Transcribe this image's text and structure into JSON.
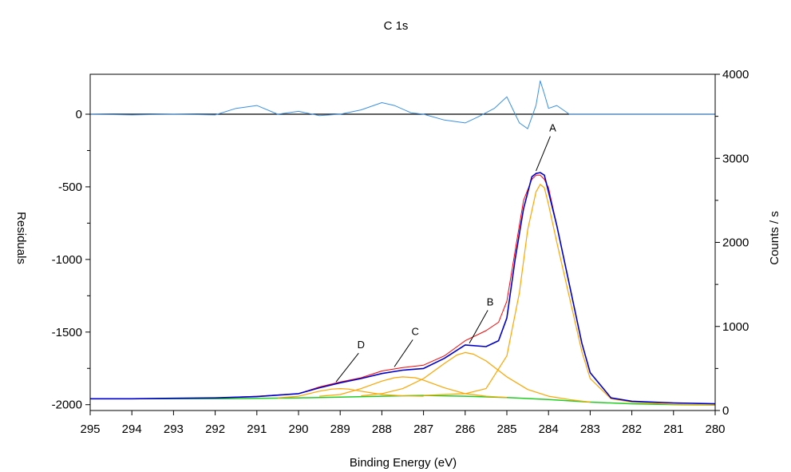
{
  "chart_data": {
    "type": "line",
    "title": "C 1s",
    "xlabel": "Binding Energy (eV)",
    "ylabel_left": "Residuals",
    "ylabel_right": "Counts / s",
    "xlim": [
      295,
      280
    ],
    "x_reversed": true,
    "x_ticks": [
      "295",
      "294",
      "293",
      "292",
      "291",
      "290",
      "289",
      "288",
      "287",
      "286",
      "285",
      "284",
      "283",
      "282",
      "281",
      "280"
    ],
    "y_left_ticks": [
      "0",
      "-500",
      "-1000",
      "-1500",
      "-2000"
    ],
    "y_left_ticks_values": [
      0,
      -500,
      -1000,
      -1500,
      -2000
    ],
    "y_left_range": [
      -2040,
      275
    ],
    "y_right_ticks": [
      "4000",
      "3000",
      "2000",
      "1000",
      "0"
    ],
    "y_right_ticks_values": [
      4000,
      3000,
      2000,
      1000,
      0
    ],
    "y_right_range": [
      0,
      4000
    ],
    "residual_zero_line": true,
    "colors": {
      "residuals": "#3b8fe6",
      "measured": "#ff0000",
      "envelope": "#0000cc",
      "components": "#ffa500",
      "background": "#22cc22"
    },
    "series": [
      {
        "axis": "left",
        "x": [
          295,
          294,
          293,
          292,
          291.5,
          291,
          290.5,
          290,
          289.5,
          289,
          288.5,
          288,
          287.7,
          287.3,
          287,
          286.5,
          286,
          285.7,
          285.3,
          285,
          284.9,
          284.7,
          284.5,
          284.3,
          284.2,
          284.1,
          284,
          283.8,
          283.5,
          283,
          282,
          281,
          280
        ],
        "values": [
          0,
          -5,
          0,
          -5,
          40,
          60,
          0,
          20,
          -10,
          0,
          30,
          80,
          60,
          10,
          0,
          -40,
          -60,
          -20,
          40,
          120,
          60,
          -60,
          -100,
          60,
          230,
          140,
          40,
          60,
          0,
          0,
          0,
          0,
          0
        ]
      },
      {
        "axis": "right",
        "x": [
          295,
          294,
          293,
          292,
          291,
          290,
          289.5,
          289,
          288.5,
          288,
          287.5,
          287,
          286.5,
          286,
          285.5,
          285.2,
          285,
          284.8,
          284.6,
          284.4,
          284.3,
          284.2,
          284.1,
          284,
          283.8,
          283.5,
          283.2,
          283,
          282.5,
          282,
          281,
          280
        ],
        "values": [
          140,
          140,
          145,
          150,
          170,
          200,
          280,
          340,
          390,
          470,
          510,
          540,
          650,
          830,
          950,
          1050,
          1300,
          1900,
          2500,
          2750,
          2800,
          2800,
          2750,
          2650,
          2200,
          1500,
          800,
          450,
          150,
          110,
          90,
          80
        ]
      },
      {
        "axis": "right",
        "x": [
          295,
          294,
          293,
          292,
          291,
          290,
          289.5,
          289,
          288.5,
          288,
          287.5,
          287,
          286.5,
          286,
          285.5,
          285.2,
          285,
          284.8,
          284.6,
          284.4,
          284.3,
          284.2,
          284.1,
          284,
          283.8,
          283.5,
          283.2,
          283,
          282.5,
          282,
          281,
          280
        ],
        "values": [
          140,
          140,
          145,
          150,
          165,
          200,
          270,
          330,
          380,
          440,
          480,
          500,
          620,
          780,
          760,
          830,
          1100,
          1800,
          2400,
          2780,
          2820,
          2830,
          2800,
          2600,
          2200,
          1500,
          800,
          450,
          150,
          110,
          90,
          80
        ]
      },
      {
        "axis": "right",
        "x": [
          295,
          292,
          290,
          289,
          288,
          287,
          286,
          285,
          284,
          283,
          282,
          281,
          280
        ],
        "values": [
          140,
          140,
          150,
          160,
          170,
          180,
          170,
          155,
          130,
          100,
          80,
          70,
          65
        ]
      },
      {
        "axis": "right",
        "x": [
          287,
          286.5,
          286,
          285.5,
          285,
          284.7,
          284.5,
          284.3,
          284.2,
          284.1,
          284,
          283.8,
          283.5,
          283.2,
          283,
          282.5,
          282,
          281,
          280
        ],
        "values": [
          180,
          190,
          200,
          260,
          650,
          1400,
          2150,
          2600,
          2690,
          2650,
          2450,
          2000,
          1350,
          700,
          380,
          140,
          100,
          75,
          65
        ]
      },
      {
        "axis": "right",
        "x": [
          288.5,
          288,
          287.5,
          287,
          286.5,
          286.2,
          286,
          285.8,
          285.5,
          285,
          284.5,
          284,
          283.5,
          283
        ],
        "values": [
          175,
          200,
          260,
          380,
          560,
          660,
          690,
          670,
          590,
          400,
          250,
          170,
          130,
          100
        ]
      },
      {
        "axis": "right",
        "x": [
          289.5,
          289,
          288.5,
          288,
          287.7,
          287.5,
          287.2,
          287,
          286.5,
          286,
          285.5,
          285
        ],
        "values": [
          170,
          190,
          260,
          350,
          390,
          400,
          390,
          360,
          270,
          200,
          170,
          155
        ]
      },
      {
        "axis": "right",
        "x": [
          290.5,
          290,
          289.5,
          289.2,
          289,
          288.8,
          288.5,
          288,
          287.5,
          287
        ],
        "values": [
          150,
          170,
          230,
          255,
          260,
          255,
          230,
          190,
          175,
          170
        ]
      }
    ],
    "annotations": [
      {
        "label": "A",
        "x": 283.9,
        "y": 3300,
        "target_x": 284.3,
        "target_y": 2850
      },
      {
        "label": "B",
        "x": 285.4,
        "y": 1230,
        "target_x": 285.9,
        "target_y": 800
      },
      {
        "label": "C",
        "x": 287.2,
        "y": 880,
        "target_x": 287.7,
        "target_y": 520
      },
      {
        "label": "D",
        "x": 288.5,
        "y": 720,
        "target_x": 289.1,
        "target_y": 340
      }
    ]
  }
}
